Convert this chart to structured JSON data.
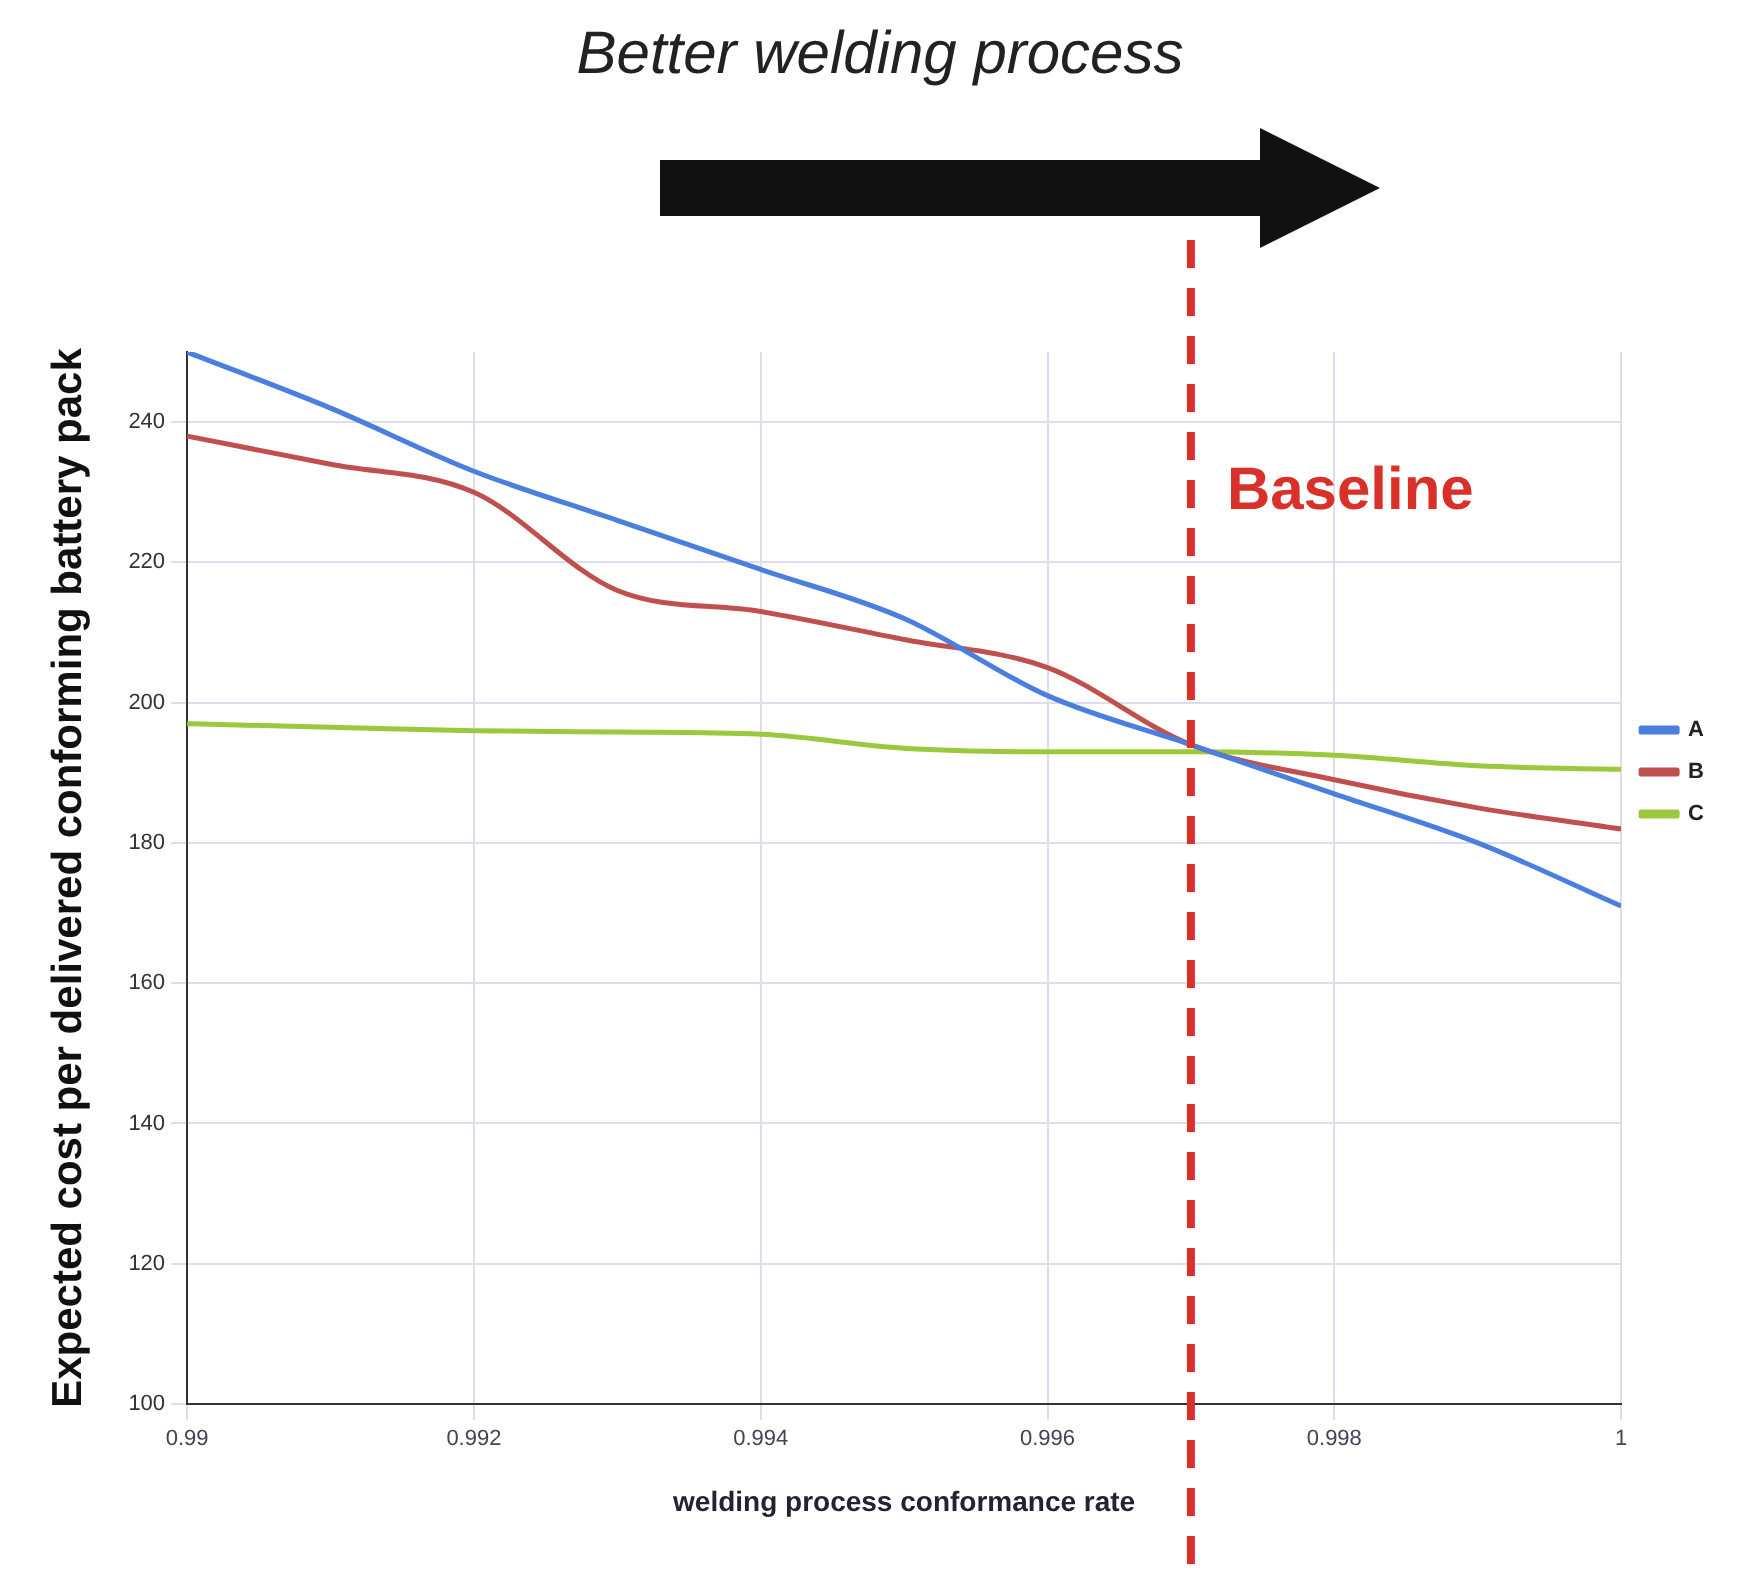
{
  "chart_data": {
    "type": "line",
    "title": "Better welding process",
    "xlabel": "welding process conformance rate",
    "ylabel": "Expected cost per delivered conforming battery pack",
    "x": [
      0.99,
      0.991,
      0.992,
      0.993,
      0.994,
      0.995,
      0.996,
      0.997,
      0.998,
      0.999,
      1
    ],
    "series": [
      {
        "name": "A",
        "color": "#4a7fe0",
        "values": [
          250,
          242,
          233,
          226,
          219,
          212,
          201,
          194,
          187,
          180,
          171
        ]
      },
      {
        "name": "B",
        "color": "#c0504d",
        "values": [
          238,
          234,
          230,
          216,
          213,
          209,
          205,
          194,
          189,
          185,
          182
        ]
      },
      {
        "name": "C",
        "color": "#9bc83c",
        "values": [
          197,
          196.5,
          196,
          195.8,
          195.5,
          193.5,
          193,
          193,
          192.5,
          191,
          190.5
        ]
      }
    ],
    "xlim": [
      0.99,
      1
    ],
    "xticks": [
      0.99,
      0.992,
      0.994,
      0.996,
      0.998,
      1
    ],
    "ylim": [
      100,
      250
    ],
    "yticks": [
      100,
      120,
      140,
      160,
      180,
      200,
      220,
      240
    ],
    "grid": true,
    "legend": "right",
    "marker": "none",
    "line_style": "solid",
    "ref_lines": [
      {
        "axis": "x",
        "value": 0.997,
        "label": "Baseline",
        "color": "#d9302a",
        "line_style": "dashed"
      }
    ]
  }
}
